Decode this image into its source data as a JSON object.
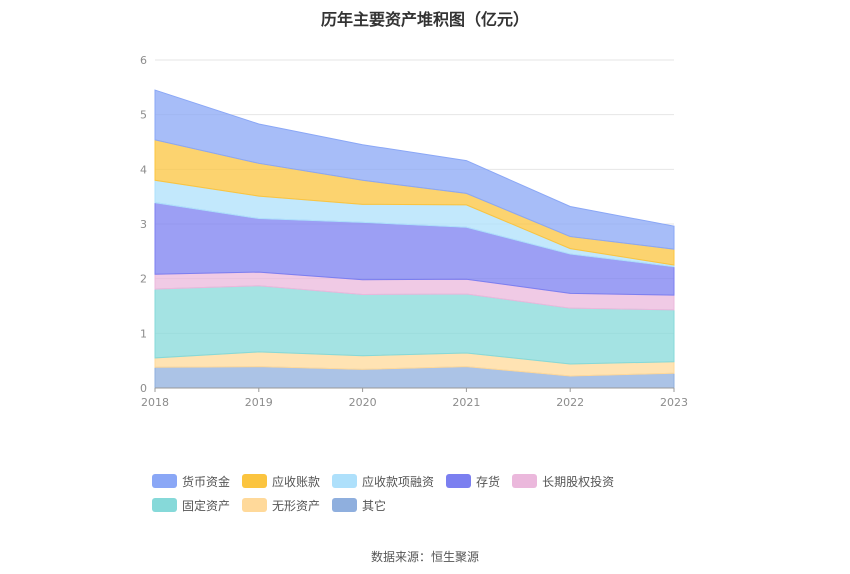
{
  "title": "历年主要资产堆积图（亿元）",
  "source": "数据来源：恒生聚源",
  "chart_data": {
    "type": "area",
    "stacked": true,
    "x": [
      "2018",
      "2019",
      "2020",
      "2021",
      "2022",
      "2023"
    ],
    "ylim": [
      0,
      6
    ],
    "yticks": [
      "0",
      "1",
      "2",
      "3",
      "4",
      "5",
      "6"
    ],
    "grid": true,
    "legend_position": "bottom",
    "series": [
      {
        "name": "其它",
        "color": "#8fafde",
        "values": [
          0.38,
          0.39,
          0.34,
          0.39,
          0.22,
          0.27
        ]
      },
      {
        "name": "无形资产",
        "color": "#ffd99a",
        "values": [
          0.17,
          0.27,
          0.25,
          0.25,
          0.22,
          0.21
        ]
      },
      {
        "name": "固定资产",
        "color": "#86d9d9",
        "values": [
          1.26,
          1.21,
          1.12,
          1.08,
          1.02,
          0.95
        ]
      },
      {
        "name": "长期股权投资",
        "color": "#ebb8dc",
        "values": [
          0.27,
          0.25,
          0.27,
          0.27,
          0.27,
          0.27
        ]
      },
      {
        "name": "存货",
        "color": "#7b7ff0",
        "values": [
          1.31,
          0.98,
          1.05,
          0.95,
          0.72,
          0.52
        ]
      },
      {
        "name": "应收款项融资",
        "color": "#aee0fb",
        "values": [
          0.41,
          0.41,
          0.33,
          0.41,
          0.1,
          0.03
        ]
      },
      {
        "name": "应收账款",
        "color": "#fbc43f",
        "values": [
          0.74,
          0.6,
          0.44,
          0.21,
          0.22,
          0.29
        ]
      },
      {
        "name": "货币资金",
        "color": "#8aa7f6",
        "values": [
          0.91,
          0.72,
          0.65,
          0.6,
          0.55,
          0.42
        ]
      }
    ]
  },
  "legend": [
    {
      "name": "货币资金",
      "color": "#8aa7f6"
    },
    {
      "name": "应收账款",
      "color": "#fbc43f"
    },
    {
      "name": "应收款项融资",
      "color": "#aee0fb"
    },
    {
      "name": "存货",
      "color": "#7b7ff0"
    },
    {
      "name": "长期股权投资",
      "color": "#ebb8dc"
    },
    {
      "name": "固定资产",
      "color": "#86d9d9"
    },
    {
      "name": "无形资产",
      "color": "#ffd99a"
    },
    {
      "name": "其它",
      "color": "#8fafde"
    }
  ]
}
